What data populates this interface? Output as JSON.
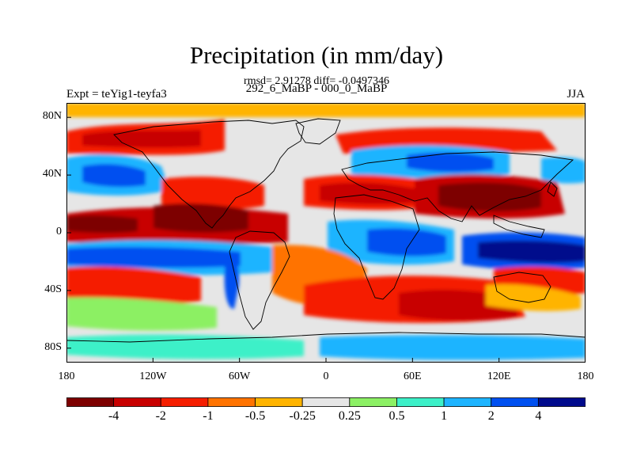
{
  "title": "Precipitation (in mm/day)",
  "subtitle_stats": "rmsd= 2.91278 diff= -0.0497346",
  "subtitle_periods": "292_6_MaBP - 000_0_MaBP",
  "experiment": "Expt = teYig1-teyfa3",
  "season": "JJA",
  "map": {
    "projection": "cylindrical-equidistant",
    "lon_range": [
      -180,
      180
    ],
    "lat_range": [
      -90,
      90
    ],
    "lat_ticks": [
      {
        "value": 80,
        "label": "80N"
      },
      {
        "value": 40,
        "label": "40N"
      },
      {
        "value": 0,
        "label": "0"
      },
      {
        "value": -40,
        "label": "40S"
      },
      {
        "value": -80,
        "label": "80S"
      }
    ],
    "lon_ticks": [
      {
        "value": -180,
        "label": "180"
      },
      {
        "value": -120,
        "label": "120W"
      },
      {
        "value": -60,
        "label": "60W"
      },
      {
        "value": 0,
        "label": "0"
      },
      {
        "value": 60,
        "label": "60E"
      },
      {
        "value": 120,
        "label": "120E"
      },
      {
        "value": 180,
        "label": "180"
      }
    ]
  },
  "colorbar": {
    "colors": [
      "#7d0000",
      "#c80000",
      "#f51e00",
      "#ff7300",
      "#ffb400",
      "#e6e6e6",
      "#8cf064",
      "#3cf0c8",
      "#1eb4ff",
      "#0050f0",
      "#000a8c"
    ],
    "labels": [
      "-4",
      "-2",
      "-1",
      "-0.5",
      "-0.25",
      "0.25",
      "0.5",
      "1",
      "2",
      "4"
    ]
  }
}
